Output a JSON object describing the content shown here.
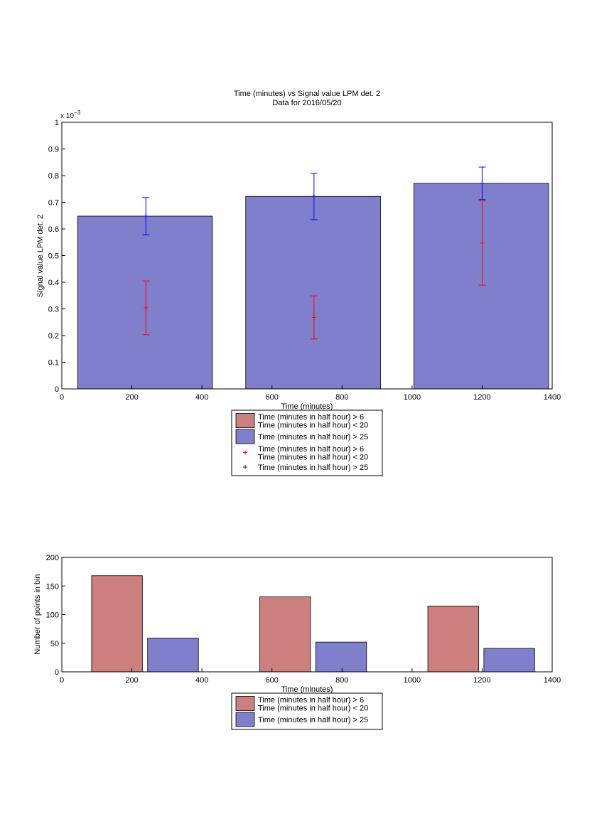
{
  "chart_data": [
    {
      "type": "bar",
      "title": "Time (minutes) vs Signal value LPM det. 2",
      "subtitle": "Data for 2016/05/20",
      "xlabel": "Time (minutes)",
      "ylabel": "Signal value LPM det. 2",
      "y_exponent_label": "x 10",
      "y_exponent_power": "−3",
      "xlim": [
        0,
        1400
      ],
      "ylim": [
        0,
        1
      ],
      "y_scale": 0.001,
      "xticks": [
        "0",
        "200",
        "400",
        "600",
        "800",
        "1000",
        "1200",
        "1400"
      ],
      "yticks": [
        "0",
        "0.1",
        "0.2",
        "0.3",
        "0.4",
        "0.5",
        "0.6",
        "0.7",
        "0.8",
        "0.9",
        "1"
      ],
      "grid": false,
      "legend_position": "bottom-center",
      "bars": [
        {
          "x_start": 45,
          "x_end": 430,
          "value": 0.648
        },
        {
          "x_start": 525,
          "x_end": 910,
          "value": 0.722
        },
        {
          "x_start": 1005,
          "x_end": 1390,
          "value": 0.771
        }
      ],
      "series": [
        {
          "name": "Time (minutes in half hour) > 6\nTime (minutes in half hour) < 20",
          "kind": "errorbar",
          "color": "#ff0000",
          "x": [
            240,
            720,
            1200
          ],
          "values": [
            0.304,
            0.268,
            0.547
          ],
          "errors": [
            0.101,
            0.081,
            0.158
          ]
        },
        {
          "name": "Time (minutes in half hour) > 25",
          "kind": "errorbar",
          "color": "#0000ff",
          "x": [
            240,
            720,
            1200
          ],
          "values": [
            0.648,
            0.722,
            0.771
          ],
          "errors": [
            0.07,
            0.087,
            0.061
          ]
        }
      ],
      "legend": [
        {
          "label": "Time (minutes in half hour) > 6\nTime (minutes in half hour) < 20",
          "style": "patch",
          "color": "#cc7f7f"
        },
        {
          "label": "Time (minutes in half hour) > 25",
          "style": "patch",
          "color": "#7f7fcc"
        },
        {
          "label": "Time (minutes in half hour) > 6\nTime (minutes in half hour) < 20",
          "style": "marker",
          "color": "#ff0000"
        },
        {
          "label": "Time (minutes in half hour) > 25",
          "style": "marker",
          "color": "#0000ff"
        }
      ]
    },
    {
      "type": "bar",
      "title": "",
      "xlabel": "Time (minutes)",
      "ylabel": "Number of points in bin",
      "xlim": [
        0,
        1400
      ],
      "ylim": [
        0,
        200
      ],
      "xticks": [
        "0",
        "200",
        "400",
        "600",
        "800",
        "1000",
        "1200",
        "1400"
      ],
      "yticks": [
        "0",
        "50",
        "100",
        "150",
        "200"
      ],
      "grid": false,
      "legend_position": "bottom-center",
      "series": [
        {
          "name": "Time (minutes in half hour) > 6\nTime (minutes in half hour) < 20",
          "color": "#cc7f7f",
          "bars": [
            {
              "x_start": 85,
              "x_end": 230,
              "value": 168
            },
            {
              "x_start": 565,
              "x_end": 710,
              "value": 131
            },
            {
              "x_start": 1045,
              "x_end": 1190,
              "value": 115
            }
          ]
        },
        {
          "name": "Time (minutes in half hour) > 25",
          "color": "#7f7fcc",
          "bars": [
            {
              "x_start": 245,
              "x_end": 390,
              "value": 59
            },
            {
              "x_start": 725,
              "x_end": 870,
              "value": 52
            },
            {
              "x_start": 1205,
              "x_end": 1350,
              "value": 41
            }
          ]
        }
      ],
      "legend": [
        {
          "label": "Time (minutes in half hour) > 6\nTime (minutes in half hour) < 20",
          "style": "patch",
          "color": "#cc7f7f"
        },
        {
          "label": "Time (minutes in half hour) > 25",
          "style": "patch",
          "color": "#7f7fcc"
        }
      ]
    }
  ]
}
